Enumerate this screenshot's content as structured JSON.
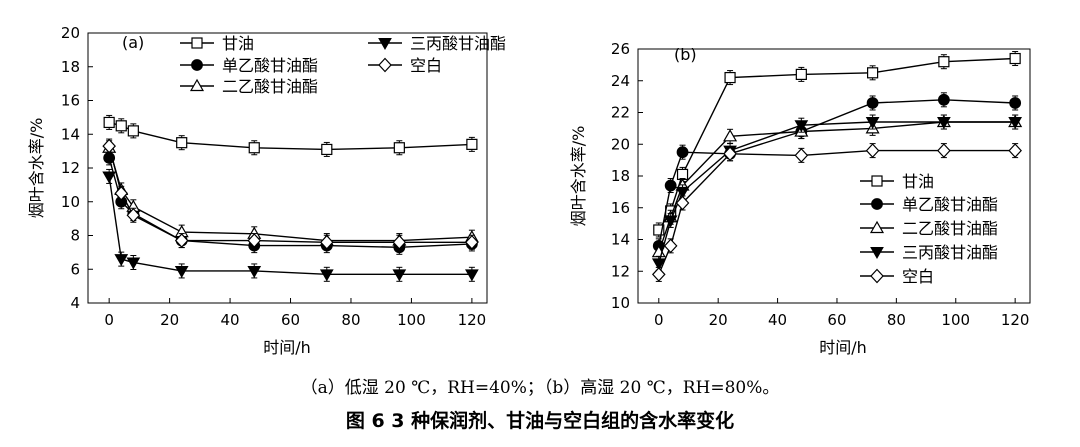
{
  "caption": {
    "sub": "（a）低湿 20 ℃，RH=40%；（b）高湿 20 ℃，RH=80%。",
    "main": "图  6    3 种保润剂、甘油与空白组的含水率变化"
  },
  "chart_data": [
    {
      "type": "line",
      "panel_label": "(a)",
      "xlabel": "时间/h",
      "ylabel": "烟叶含水率/%",
      "xlim": [
        -7,
        125
      ],
      "ylim": [
        4,
        20
      ],
      "xticks": [
        0,
        20,
        40,
        60,
        80,
        100,
        120
      ],
      "yticks": [
        4,
        6,
        8,
        10,
        12,
        14,
        16,
        18,
        20
      ],
      "legend": "top, two columns",
      "series": [
        {
          "name": "甘油",
          "marker": "square-open",
          "x": [
            0,
            4,
            8,
            24,
            48,
            72,
            96,
            120
          ],
          "y": [
            14.7,
            14.5,
            14.2,
            13.5,
            13.2,
            13.1,
            13.2,
            13.4
          ]
        },
        {
          "name": "单乙酸甘油酯",
          "marker": "circle-filled",
          "x": [
            0,
            4,
            8,
            24,
            48,
            72,
            96,
            120
          ],
          "y": [
            12.6,
            10.0,
            9.3,
            7.7,
            7.4,
            7.4,
            7.3,
            7.5
          ]
        },
        {
          "name": "二乙酸甘油酯",
          "marker": "triangle-open",
          "x": [
            0,
            4,
            8,
            24,
            48,
            72,
            96,
            120
          ],
          "y": [
            13.2,
            10.7,
            9.7,
            8.2,
            8.1,
            7.7,
            7.7,
            7.9
          ]
        },
        {
          "name": "三丙酸甘油酯",
          "marker": "triangle-down-filled",
          "x": [
            0,
            4,
            8,
            24,
            48,
            72,
            96,
            120
          ],
          "y": [
            11.5,
            6.6,
            6.4,
            5.9,
            5.9,
            5.7,
            5.7,
            5.7
          ]
        },
        {
          "name": "空白",
          "marker": "diamond-open",
          "x": [
            0,
            4,
            8,
            24,
            48,
            72,
            96,
            120
          ],
          "y": [
            13.3,
            10.5,
            9.2,
            7.7,
            7.7,
            7.6,
            7.6,
            7.6
          ]
        }
      ]
    },
    {
      "type": "line",
      "panel_label": "(b)",
      "xlabel": "时间/h",
      "ylabel": "烟叶含水率/%",
      "xlim": [
        -7,
        125
      ],
      "ylim": [
        10,
        26
      ],
      "xticks": [
        0,
        20,
        40,
        60,
        80,
        100,
        120
      ],
      "yticks": [
        10,
        12,
        14,
        16,
        18,
        20,
        22,
        24,
        26
      ],
      "legend": "right, single column",
      "series": [
        {
          "name": "甘油",
          "marker": "square-open",
          "x": [
            0,
            4,
            8,
            24,
            48,
            72,
            96,
            120
          ],
          "y": [
            14.6,
            15.8,
            18.1,
            24.2,
            24.4,
            24.5,
            25.2,
            25.4
          ]
        },
        {
          "name": "单乙酸甘油酯",
          "marker": "circle-filled",
          "x": [
            0,
            4,
            8,
            24,
            48,
            72,
            96,
            120
          ],
          "y": [
            13.6,
            17.4,
            19.5,
            19.4,
            20.8,
            22.6,
            22.8,
            22.6
          ]
        },
        {
          "name": "二乙酸甘油酯",
          "marker": "triangle-open",
          "x": [
            0,
            4,
            8,
            24,
            48,
            72,
            96,
            120
          ],
          "y": [
            13.2,
            15.4,
            17.4,
            20.5,
            20.8,
            21.0,
            21.4,
            21.4
          ]
        },
        {
          "name": "三丙酸甘油酯",
          "marker": "triangle-down-filled",
          "x": [
            0,
            4,
            8,
            24,
            48,
            72,
            96,
            120
          ],
          "y": [
            12.5,
            15.2,
            17.0,
            19.6,
            21.2,
            21.4,
            21.4,
            21.4
          ]
        },
        {
          "name": "空白",
          "marker": "diamond-open",
          "x": [
            0,
            4,
            8,
            24,
            48,
            72,
            96,
            120
          ],
          "y": [
            11.8,
            13.6,
            16.3,
            19.4,
            19.3,
            19.6,
            19.6,
            19.6
          ]
        }
      ]
    }
  ]
}
